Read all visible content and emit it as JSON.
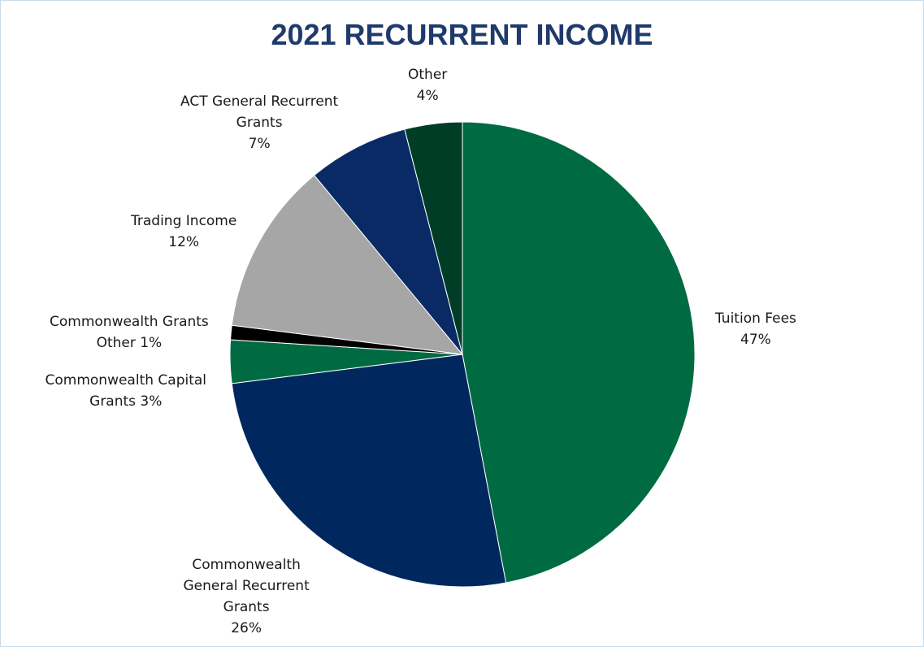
{
  "chart_data": {
    "type": "pie",
    "title": "2021 RECURRENT INCOME",
    "slices": [
      {
        "name": "Tuition Fees",
        "value": 47,
        "color": "#006b42",
        "label_lines": [
          "Tuition Fees",
          "47%"
        ]
      },
      {
        "name": "Commonwealth General Recurrent Grants",
        "value": 26,
        "color": "#00285e",
        "label_lines": [
          "Commonwealth",
          "General Recurrent",
          "Grants",
          "26%"
        ]
      },
      {
        "name": "Commonwealth Capital Grants",
        "value": 3,
        "color": "#006b42",
        "label_lines": [
          "Commonwealth Capital",
          "Grants 3%"
        ]
      },
      {
        "name": "Commonwealth Grants Other",
        "value": 1,
        "color": "#000000",
        "label_lines": [
          "Commonwealth Grants",
          "Other 1%"
        ]
      },
      {
        "name": "Trading Income",
        "value": 12,
        "color": "#a6a6a6",
        "label_lines": [
          "Trading Income",
          "12%"
        ]
      },
      {
        "name": "ACT General Recurrent Grants",
        "value": 7,
        "color": "#0a2a66",
        "label_lines": [
          "ACT General Recurrent",
          "Grants",
          "7%"
        ]
      },
      {
        "name": "Other",
        "value": 4,
        "color": "#003d26",
        "label_lines": [
          "Other",
          "4%"
        ]
      }
    ]
  }
}
